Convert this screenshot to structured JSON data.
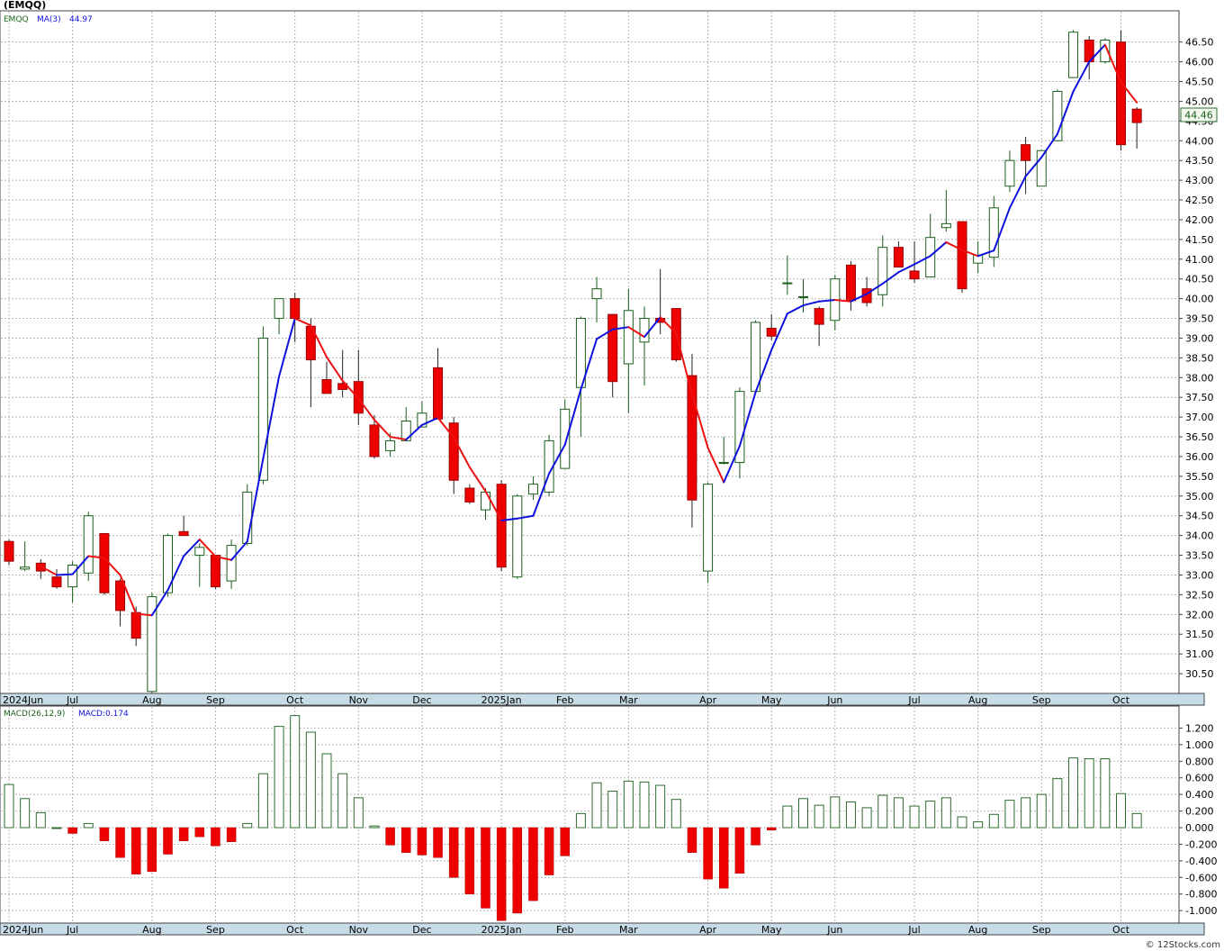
{
  "title": "(EMQQ)",
  "watermark": "© 12Stocks.com",
  "colors": {
    "up_fill": "#ffffff",
    "up_stroke": "#1a5e1a",
    "down_fill": "#ee0000",
    "down_stroke": "#990000",
    "ma_up": "#1010dd",
    "ma_down": "#ee1111",
    "grid": "#b4b4b4",
    "axis_band": "#c8dce8",
    "hist_pos_stroke": "#2e6b2e",
    "hist_neg_fill": "#ee0000"
  },
  "chart_data": [
    {
      "type": "candlestick",
      "legend": {
        "symbol": "EMQQ",
        "ma_label": "MA(3)",
        "ma_value": "44.97"
      },
      "last_price_label": "44.46",
      "ylim": [
        30.0,
        47.2
      ],
      "y_ticks": [
        "30.50",
        "31.00",
        "31.50",
        "32.00",
        "32.50",
        "33.00",
        "33.50",
        "34.00",
        "34.50",
        "35.00",
        "35.50",
        "36.00",
        "36.50",
        "37.00",
        "37.50",
        "38.00",
        "38.50",
        "39.00",
        "39.50",
        "40.00",
        "40.50",
        "41.00",
        "41.50",
        "42.00",
        "42.50",
        "43.00",
        "43.50",
        "44.00",
        "44.50",
        "45.00",
        "45.50",
        "46.00",
        "46.50"
      ],
      "x_labels": [
        {
          "label": "2024Jun",
          "i": 0
        },
        {
          "label": "Jul",
          "i": 4
        },
        {
          "label": "Aug",
          "i": 9
        },
        {
          "label": "Sep",
          "i": 13
        },
        {
          "label": "Oct",
          "i": 18
        },
        {
          "label": "Nov",
          "i": 22
        },
        {
          "label": "Dec",
          "i": 26
        },
        {
          "label": "2025Jan",
          "i": 31
        },
        {
          "label": "Feb",
          "i": 35
        },
        {
          "label": "Mar",
          "i": 39
        },
        {
          "label": "Apr",
          "i": 44
        },
        {
          "label": "May",
          "i": 48
        },
        {
          "label": "Jun",
          "i": 52
        },
        {
          "label": "Jul",
          "i": 57
        },
        {
          "label": "Aug",
          "i": 61
        },
        {
          "label": "Sep",
          "i": 65
        },
        {
          "label": "Oct",
          "i": 70
        }
      ],
      "ohlc": [
        [
          33.85,
          33.9,
          33.25,
          33.35
        ],
        [
          33.15,
          33.85,
          33.1,
          33.2
        ],
        [
          33.3,
          33.4,
          32.9,
          33.1
        ],
        [
          32.95,
          33.15,
          32.65,
          32.7
        ],
        [
          32.7,
          33.35,
          32.3,
          33.25
        ],
        [
          33.05,
          34.6,
          32.85,
          34.5
        ],
        [
          34.05,
          34.05,
          32.5,
          32.55
        ],
        [
          32.85,
          32.9,
          31.7,
          32.1
        ],
        [
          32.05,
          32.2,
          31.2,
          31.4
        ],
        [
          30.05,
          32.55,
          30.0,
          32.45
        ],
        [
          32.55,
          34.05,
          32.45,
          34.0
        ],
        [
          34.1,
          34.5,
          34.0,
          34.0
        ],
        [
          33.5,
          33.8,
          32.7,
          33.7
        ],
        [
          33.5,
          33.5,
          32.65,
          32.7
        ],
        [
          32.85,
          33.9,
          32.65,
          33.75
        ],
        [
          33.8,
          35.3,
          33.75,
          35.1
        ],
        [
          35.4,
          39.3,
          35.3,
          39.0
        ],
        [
          39.5,
          40.0,
          39.1,
          40.0
        ],
        [
          40.0,
          40.15,
          38.9,
          39.5
        ],
        [
          39.3,
          39.5,
          37.25,
          38.45
        ],
        [
          37.95,
          38.4,
          37.6,
          37.6
        ],
        [
          37.85,
          38.7,
          37.5,
          37.7
        ],
        [
          37.9,
          38.7,
          36.8,
          37.1
        ],
        [
          36.8,
          37.05,
          35.95,
          36.0
        ],
        [
          36.15,
          36.6,
          36.0,
          36.4
        ],
        [
          36.4,
          37.25,
          36.4,
          36.9
        ],
        [
          36.75,
          37.4,
          36.8,
          37.1
        ],
        [
          38.25,
          38.75,
          36.95,
          36.95
        ],
        [
          36.85,
          37.0,
          35.05,
          35.4
        ],
        [
          35.2,
          35.3,
          34.8,
          34.85
        ],
        [
          34.65,
          35.2,
          34.4,
          35.1
        ],
        [
          35.3,
          35.4,
          33.1,
          33.2
        ],
        [
          32.95,
          35.05,
          32.9,
          35.0
        ],
        [
          35.05,
          35.5,
          34.9,
          35.3
        ],
        [
          35.1,
          36.55,
          35.0,
          36.4
        ],
        [
          35.7,
          37.45,
          35.7,
          37.2
        ],
        [
          37.75,
          39.55,
          36.5,
          39.5
        ],
        [
          40.0,
          40.55,
          39.4,
          40.25
        ],
        [
          39.6,
          39.6,
          37.5,
          37.9
        ],
        [
          38.35,
          40.25,
          37.1,
          39.7
        ],
        [
          38.9,
          39.8,
          37.8,
          39.5
        ],
        [
          39.5,
          40.75,
          39.1,
          39.4
        ],
        [
          39.75,
          39.75,
          38.4,
          38.45
        ],
        [
          38.05,
          38.6,
          34.2,
          34.9
        ],
        [
          33.1,
          35.35,
          32.8,
          35.3
        ],
        [
          35.85,
          36.5,
          35.8,
          35.85
        ],
        [
          35.85,
          37.75,
          35.45,
          37.65
        ],
        [
          37.65,
          39.45,
          37.7,
          39.4
        ],
        [
          39.25,
          39.6,
          38.95,
          39.05
        ],
        [
          40.4,
          41.1,
          40.1,
          40.4
        ],
        [
          40.05,
          40.5,
          39.65,
          40.05
        ],
        [
          39.75,
          39.8,
          38.8,
          39.35
        ],
        [
          39.45,
          40.6,
          39.2,
          40.5
        ],
        [
          40.85,
          40.95,
          39.7,
          39.95
        ],
        [
          40.25,
          40.55,
          39.8,
          39.9
        ],
        [
          40.1,
          41.6,
          39.8,
          41.3
        ],
        [
          41.3,
          41.45,
          40.8,
          40.8
        ],
        [
          40.7,
          41.45,
          40.4,
          40.5
        ],
        [
          40.55,
          42.15,
          40.55,
          41.55
        ],
        [
          41.8,
          42.75,
          41.7,
          41.9
        ],
        [
          41.95,
          41.95,
          40.15,
          40.25
        ],
        [
          40.9,
          41.45,
          40.65,
          41.1
        ],
        [
          41.05,
          42.6,
          40.8,
          42.3
        ],
        [
          42.85,
          43.75,
          42.7,
          43.5
        ],
        [
          43.9,
          44.1,
          42.65,
          43.5
        ],
        [
          42.85,
          43.65,
          42.85,
          43.75
        ],
        [
          44.0,
          45.3,
          44.0,
          45.25
        ],
        [
          45.6,
          46.8,
          45.6,
          46.75
        ],
        [
          46.55,
          46.65,
          45.55,
          46.0
        ],
        [
          46.0,
          46.6,
          45.95,
          46.55
        ],
        [
          46.5,
          46.8,
          43.75,
          43.9
        ],
        [
          44.8,
          44.85,
          43.8,
          44.46
        ]
      ],
      "ma3": [
        null,
        null,
        33.22,
        33.0,
        33.02,
        33.48,
        33.43,
        33.0,
        32.02,
        31.98,
        32.62,
        33.48,
        33.9,
        33.47,
        33.38,
        33.85,
        35.95,
        38.03,
        39.5,
        39.32,
        38.52,
        37.92,
        37.47,
        36.93,
        36.5,
        36.43,
        36.8,
        36.98,
        36.48,
        35.73,
        35.12,
        34.38,
        34.43,
        34.5,
        35.57,
        36.3,
        37.7,
        38.98,
        39.22,
        39.28,
        39.03,
        39.53,
        39.12,
        37.58,
        36.22,
        35.35,
        36.27,
        37.63,
        38.7,
        39.62,
        39.83,
        39.93,
        39.97,
        39.93,
        40.12,
        40.38,
        40.67,
        40.87,
        41.08,
        41.43,
        41.23,
        41.08,
        41.22,
        42.3,
        43.1,
        43.58,
        44.17,
        45.25,
        46.0,
        46.43,
        45.48,
        44.97
      ]
    },
    {
      "type": "bar",
      "legend": {
        "name": "MACD(26,12,9)",
        "value_label": "MACD:0.174"
      },
      "ylim": [
        -1.15,
        1.4
      ],
      "y_ticks": [
        "-1.000",
        "-0.800",
        "-0.600",
        "-0.400",
        "-0.200",
        "0.000",
        "0.200",
        "0.400",
        "0.600",
        "0.800",
        "1.000",
        "1.200"
      ],
      "x_labels": [
        {
          "label": "2024Jun",
          "i": 0
        },
        {
          "label": "Jul",
          "i": 4
        },
        {
          "label": "Aug",
          "i": 9
        },
        {
          "label": "Sep",
          "i": 13
        },
        {
          "label": "Oct",
          "i": 18
        },
        {
          "label": "Nov",
          "i": 22
        },
        {
          "label": "Dec",
          "i": 26
        },
        {
          "label": "2025Jan",
          "i": 31
        },
        {
          "label": "Feb",
          "i": 35
        },
        {
          "label": "Mar",
          "i": 39
        },
        {
          "label": "Apr",
          "i": 44
        },
        {
          "label": "May",
          "i": 48
        },
        {
          "label": "Jun",
          "i": 52
        },
        {
          "label": "Jul",
          "i": 57
        },
        {
          "label": "Aug",
          "i": 61
        },
        {
          "label": "Sep",
          "i": 65
        },
        {
          "label": "Oct",
          "i": 70
        }
      ],
      "values": [
        0.52,
        0.35,
        0.18,
        0.0,
        -0.07,
        0.05,
        -0.16,
        -0.36,
        -0.56,
        -0.53,
        -0.32,
        -0.16,
        -0.11,
        -0.22,
        -0.17,
        0.05,
        0.65,
        1.22,
        1.35,
        1.15,
        0.89,
        0.65,
        0.36,
        0.02,
        -0.21,
        -0.3,
        -0.33,
        -0.36,
        -0.6,
        -0.8,
        -0.97,
        -1.12,
        -1.03,
        -0.88,
        -0.57,
        -0.34,
        0.17,
        0.54,
        0.44,
        0.56,
        0.55,
        0.51,
        0.34,
        -0.3,
        -0.62,
        -0.73,
        -0.55,
        -0.21,
        -0.03,
        0.26,
        0.35,
        0.27,
        0.37,
        0.31,
        0.24,
        0.39,
        0.36,
        0.26,
        0.32,
        0.36,
        0.13,
        0.07,
        0.16,
        0.33,
        0.36,
        0.4,
        0.59,
        0.84,
        0.83,
        0.83,
        0.41,
        0.17
      ]
    }
  ]
}
